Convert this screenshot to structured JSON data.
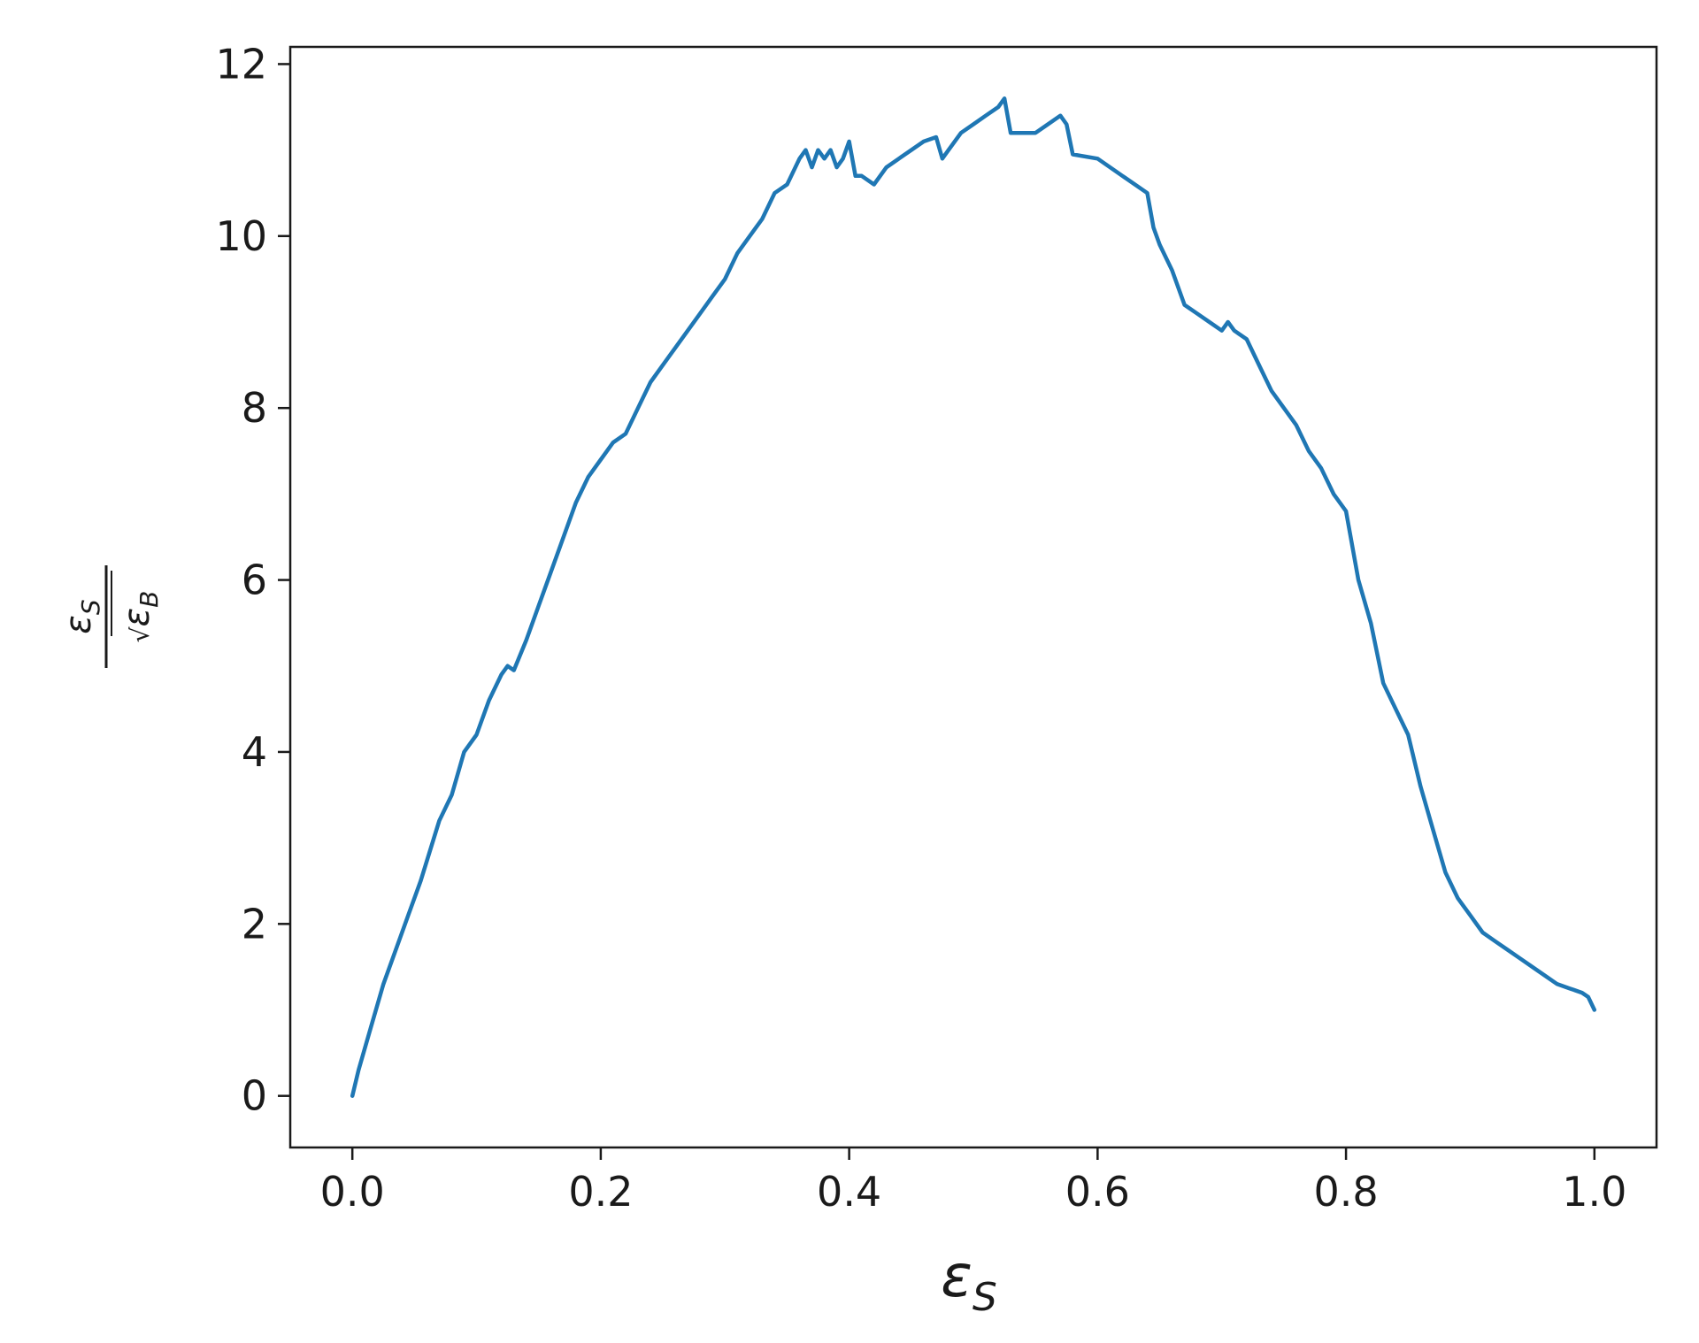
{
  "chart_data": {
    "type": "line",
    "title": "",
    "xlabel": {
      "base": "ε",
      "sub": "S"
    },
    "ylabel": {
      "numerator": {
        "base": "ε",
        "sub": "S"
      },
      "radical": "√",
      "denominator": {
        "base": "ε",
        "sub": "B"
      }
    },
    "xlim": [
      -0.05,
      1.05
    ],
    "ylim": [
      -0.6,
      12.2
    ],
    "xticks": [
      0.0,
      0.2,
      0.4,
      0.6,
      0.8,
      1.0
    ],
    "xtick_labels": [
      "0.0",
      "0.2",
      "0.4",
      "0.6",
      "0.8",
      "1.0"
    ],
    "yticks": [
      0,
      2,
      4,
      6,
      8,
      10,
      12
    ],
    "ytick_labels": [
      "0",
      "2",
      "4",
      "6",
      "8",
      "10",
      "12"
    ],
    "grid": false,
    "series": [
      {
        "color": "#1f77b4",
        "x": [
          0.0,
          0.005,
          0.015,
          0.025,
          0.035,
          0.045,
          0.055,
          0.07,
          0.08,
          0.09,
          0.1,
          0.11,
          0.12,
          0.125,
          0.13,
          0.14,
          0.15,
          0.16,
          0.17,
          0.18,
          0.19,
          0.2,
          0.21,
          0.22,
          0.23,
          0.24,
          0.25,
          0.26,
          0.27,
          0.28,
          0.29,
          0.3,
          0.31,
          0.32,
          0.33,
          0.34,
          0.35,
          0.36,
          0.365,
          0.37,
          0.375,
          0.38,
          0.385,
          0.39,
          0.395,
          0.4,
          0.405,
          0.41,
          0.42,
          0.43,
          0.44,
          0.45,
          0.46,
          0.47,
          0.475,
          0.48,
          0.49,
          0.5,
          0.51,
          0.52,
          0.525,
          0.53,
          0.54,
          0.55,
          0.56,
          0.57,
          0.575,
          0.58,
          0.6,
          0.62,
          0.63,
          0.64,
          0.645,
          0.65,
          0.66,
          0.67,
          0.68,
          0.69,
          0.7,
          0.705,
          0.71,
          0.72,
          0.73,
          0.74,
          0.75,
          0.76,
          0.77,
          0.78,
          0.79,
          0.8,
          0.81,
          0.82,
          0.83,
          0.84,
          0.85,
          0.86,
          0.87,
          0.88,
          0.89,
          0.9,
          0.91,
          0.92,
          0.93,
          0.94,
          0.95,
          0.96,
          0.97,
          0.98,
          0.99,
          0.995,
          1.0
        ],
        "y": [
          0.0,
          0.3,
          0.8,
          1.3,
          1.7,
          2.1,
          2.5,
          3.2,
          3.5,
          4.0,
          4.2,
          4.6,
          4.9,
          5.0,
          4.95,
          5.3,
          5.7,
          6.1,
          6.5,
          6.9,
          7.2,
          7.4,
          7.6,
          7.7,
          8.0,
          8.3,
          8.5,
          8.7,
          8.9,
          9.1,
          9.3,
          9.5,
          9.8,
          10.0,
          10.2,
          10.5,
          10.6,
          10.9,
          11.0,
          10.8,
          11.0,
          10.9,
          11.0,
          10.8,
          10.9,
          11.1,
          10.7,
          10.7,
          10.6,
          10.8,
          10.9,
          11.0,
          11.1,
          11.15,
          10.9,
          11.0,
          11.2,
          11.3,
          11.4,
          11.5,
          11.6,
          11.2,
          11.2,
          11.2,
          11.3,
          11.4,
          11.3,
          10.95,
          10.9,
          10.7,
          10.6,
          10.5,
          10.1,
          9.9,
          9.6,
          9.2,
          9.1,
          9.0,
          8.9,
          9.0,
          8.9,
          8.8,
          8.5,
          8.2,
          8.0,
          7.8,
          7.5,
          7.3,
          7.0,
          6.8,
          6.0,
          5.5,
          4.8,
          4.5,
          4.2,
          3.6,
          3.1,
          2.6,
          2.3,
          2.1,
          1.9,
          1.8,
          1.7,
          1.6,
          1.5,
          1.4,
          1.3,
          1.25,
          1.2,
          1.15,
          1.0
        ]
      }
    ]
  }
}
